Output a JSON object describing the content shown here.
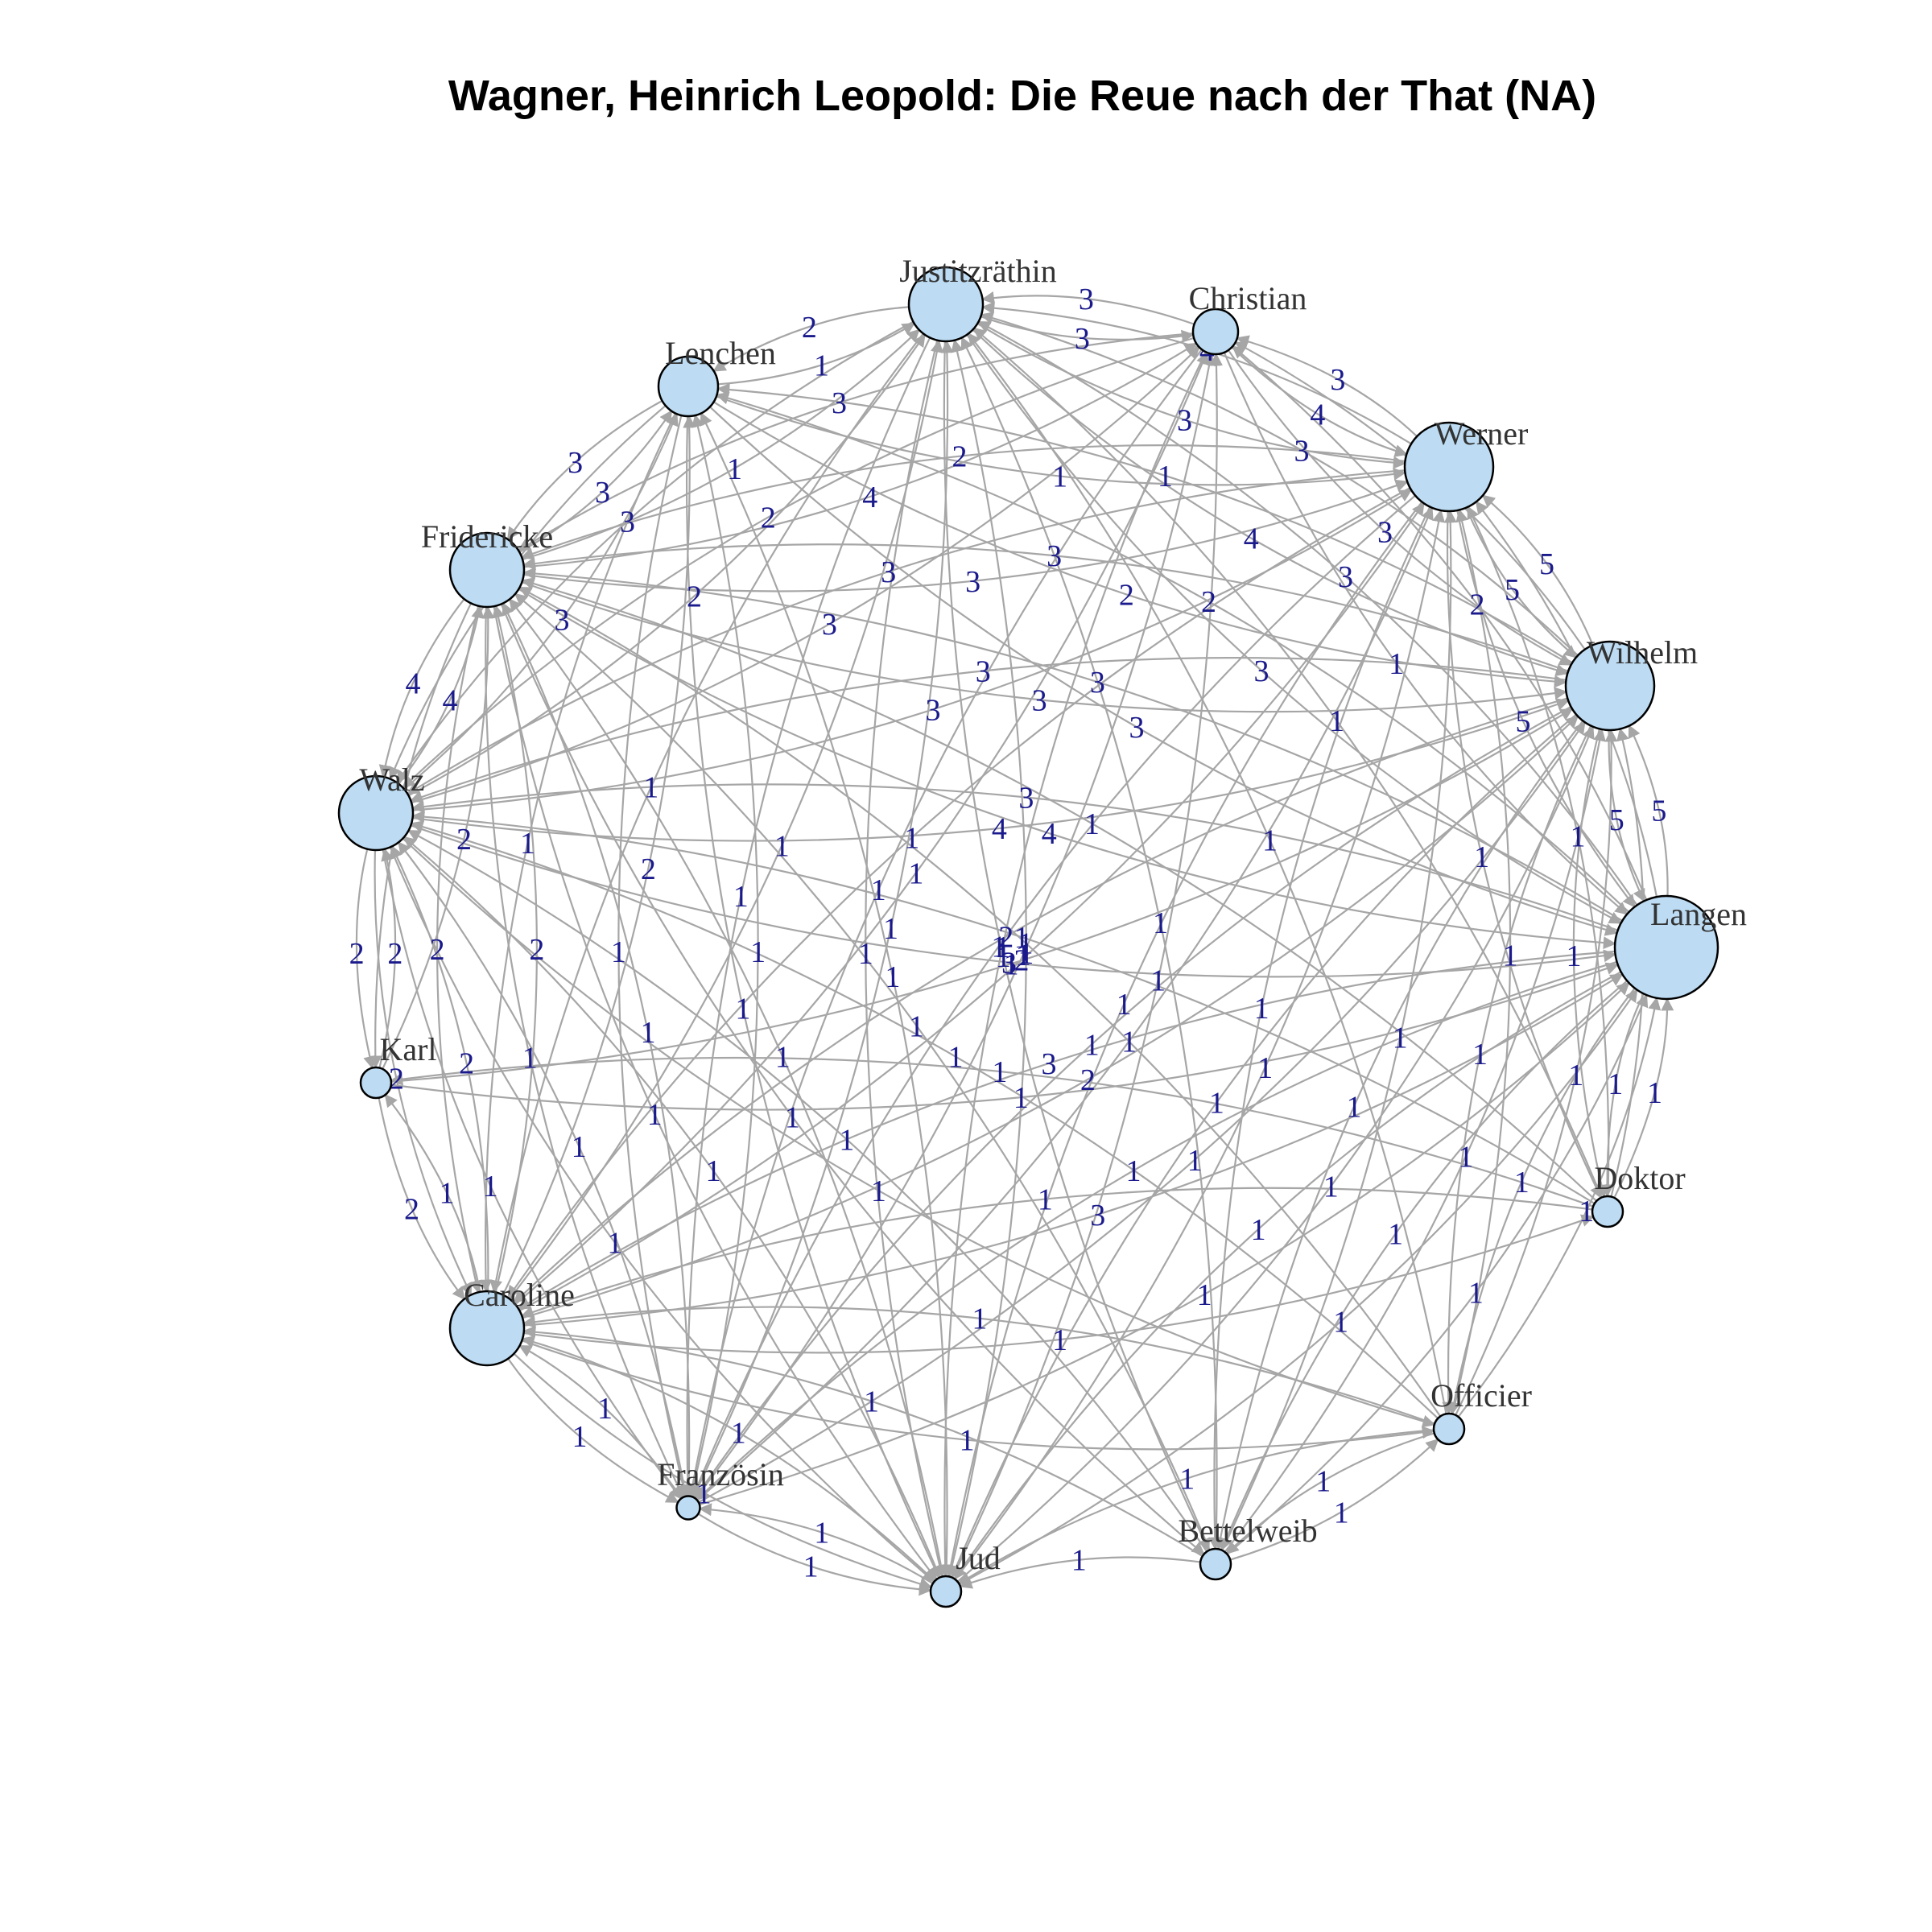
{
  "title": "Wagner, Heinrich Leopold: Die Reue nach der That (NA)",
  "colors": {
    "node_fill": "#bddcf3",
    "node_stroke": "#000000",
    "edge": "#a6a6a6",
    "edge_label": "#1a1a8c",
    "node_label": "#333333"
  },
  "nodes": [
    {
      "id": "Justitzräthin",
      "label": "Justitzräthin",
      "weight": 4
    },
    {
      "id": "Christian",
      "label": "Christian",
      "weight": 2
    },
    {
      "id": "Werner",
      "label": "Werner",
      "weight": 5
    },
    {
      "id": "Wilhelm",
      "label": "Wilhelm",
      "weight": 5
    },
    {
      "id": "Langen",
      "label": "Langen",
      "weight": 6
    },
    {
      "id": "Doktor",
      "label": "Doktor",
      "weight": 1
    },
    {
      "id": "Officier",
      "label": "Officier",
      "weight": 1
    },
    {
      "id": "Bettelweib",
      "label": "Bettelweib",
      "weight": 1
    },
    {
      "id": "Jud",
      "label": "Jud",
      "weight": 1
    },
    {
      "id": "Französin",
      "label": "Französin",
      "weight": 0.5
    },
    {
      "id": "Caroline",
      "label": "Caroline",
      "weight": 4
    },
    {
      "id": "Karl",
      "label": "Karl",
      "weight": 1
    },
    {
      "id": "Walz",
      "label": "Walz",
      "weight": 4
    },
    {
      "id": "Fridericke",
      "label": "Fridericke",
      "weight": 4
    },
    {
      "id": "Lenchen",
      "label": "Lenchen",
      "weight": 3
    }
  ],
  "edges": [
    [
      "Justitzräthin",
      "Christian",
      3
    ],
    [
      "Christian",
      "Justitzräthin",
      3
    ],
    [
      "Justitzräthin",
      "Lenchen",
      2
    ],
    [
      "Lenchen",
      "Justitzräthin",
      1
    ],
    [
      "Fridericke",
      "Justitzräthin",
      1
    ],
    [
      "Justitzräthin",
      "Werner",
      3
    ],
    [
      "Werner",
      "Justitzräthin",
      4
    ],
    [
      "Christian",
      "Werner",
      4
    ],
    [
      "Werner",
      "Christian",
      3
    ],
    [
      "Werner",
      "Wilhelm",
      5
    ],
    [
      "Wilhelm",
      "Werner",
      5
    ],
    [
      "Wilhelm",
      "Langen",
      5
    ],
    [
      "Langen",
      "Wilhelm",
      5
    ],
    [
      "Werner",
      "Langen",
      5
    ],
    [
      "Langen",
      "Werner",
      4
    ],
    [
      "Fridericke",
      "Lenchen",
      3
    ],
    [
      "Lenchen",
      "Fridericke",
      3
    ],
    [
      "Walz",
      "Fridericke",
      4
    ],
    [
      "Fridericke",
      "Walz",
      4
    ],
    [
      "Walz",
      "Karl",
      2
    ],
    [
      "Karl",
      "Walz",
      2
    ],
    [
      "Caroline",
      "Walz",
      2
    ],
    [
      "Walz",
      "Caroline",
      2
    ],
    [
      "Caroline",
      "Französin",
      1
    ],
    [
      "Französin",
      "Caroline",
      1
    ],
    [
      "Jud",
      "Französin",
      1
    ],
    [
      "Bettelweib",
      "Officier",
      1
    ],
    [
      "Officier",
      "Bettelweib",
      1
    ],
    [
      "Doktor",
      "Langen",
      1
    ],
    [
      "Langen",
      "Doktor",
      1
    ],
    [
      "Officier",
      "Langen",
      1
    ],
    [
      "Fridericke",
      "Werner",
      3
    ],
    [
      "Werner",
      "Fridericke",
      2
    ],
    [
      "Walz",
      "Werner",
      3
    ],
    [
      "Werner",
      "Walz",
      3
    ],
    [
      "Fridericke",
      "Wilhelm",
      3
    ],
    [
      "Wilhelm",
      "Fridericke",
      3
    ],
    [
      "Walz",
      "Wilhelm",
      4
    ],
    [
      "Wilhelm",
      "Walz",
      3
    ],
    [
      "Walz",
      "Langen",
      3
    ],
    [
      "Langen",
      "Walz",
      3
    ],
    [
      "Fridericke",
      "Langen",
      4
    ],
    [
      "Langen",
      "Fridericke",
      3
    ],
    [
      "Caroline",
      "Langen",
      3
    ],
    [
      "Langen",
      "Caroline",
      3
    ],
    [
      "Caroline",
      "Wilhelm",
      2
    ],
    [
      "Wilhelm",
      "Caroline",
      2
    ],
    [
      "Caroline",
      "Werner",
      2
    ],
    [
      "Werner",
      "Caroline",
      1
    ],
    [
      "Caroline",
      "Fridericke",
      2
    ],
    [
      "Fridericke",
      "Caroline",
      2
    ],
    [
      "Caroline",
      "Justitzräthin",
      1
    ],
    [
      "Justitzräthin",
      "Caroline",
      1
    ],
    [
      "Caroline",
      "Lenchen",
      2
    ],
    [
      "Lenchen",
      "Caroline",
      1
    ],
    [
      "Caroline",
      "Christian",
      1
    ],
    [
      "Walz",
      "Justitzräthin",
      2
    ],
    [
      "Justitzräthin",
      "Walz",
      3
    ],
    [
      "Walz",
      "Lenchen",
      3
    ],
    [
      "Lenchen",
      "Walz",
      2
    ],
    [
      "Walz",
      "Christian",
      3
    ],
    [
      "Christian",
      "Walz",
      2
    ],
    [
      "Fridericke",
      "Christian",
      4
    ],
    [
      "Christian",
      "Fridericke",
      3
    ],
    [
      "Justitzräthin",
      "Wilhelm",
      4
    ],
    [
      "Wilhelm",
      "Justitzräthin",
      3
    ],
    [
      "Justitzräthin",
      "Langen",
      3
    ],
    [
      "Langen",
      "Justitzräthin",
      3
    ],
    [
      "Christian",
      "Wilhelm",
      3
    ],
    [
      "Wilhelm",
      "Christian",
      4
    ],
    [
      "Christian",
      "Langen",
      1
    ],
    [
      "Langen",
      "Christian",
      2
    ],
    [
      "Lenchen",
      "Werner",
      1
    ],
    [
      "Lenchen",
      "Wilhelm",
      2
    ],
    [
      "Wilhelm",
      "Lenchen",
      1
    ],
    [
      "Lenchen",
      "Langen",
      3
    ],
    [
      "Langen",
      "Lenchen",
      2
    ],
    [
      "Karl",
      "Langen",
      1
    ],
    [
      "Karl",
      "Fridericke",
      2
    ],
    [
      "Fridericke",
      "Karl",
      1
    ],
    [
      "Karl",
      "Wilhelm",
      1
    ],
    [
      "Doktor",
      "Wilhelm",
      1
    ],
    [
      "Doktor",
      "Werner",
      1
    ],
    [
      "Doktor",
      "Caroline",
      1
    ],
    [
      "Doktor",
      "Walz",
      1
    ],
    [
      "Doktor",
      "Karl",
      1
    ],
    [
      "Doktor",
      "Justitzräthin",
      1
    ],
    [
      "Doktor",
      "Fridericke",
      1
    ],
    [
      "Officier",
      "Wilhelm",
      1
    ],
    [
      "Officier",
      "Werner",
      1
    ],
    [
      "Officier",
      "Caroline",
      1
    ],
    [
      "Officier",
      "Walz",
      1
    ],
    [
      "Officier",
      "Fridericke",
      1
    ],
    [
      "Officier",
      "Justitzräthin",
      1
    ],
    [
      "Officier",
      "Jud",
      1
    ],
    [
      "Bettelweib",
      "Langen",
      1
    ],
    [
      "Bettelweib",
      "Wilhelm",
      1
    ],
    [
      "Bettelweib",
      "Werner",
      1
    ],
    [
      "Bettelweib",
      "Caroline",
      1
    ],
    [
      "Bettelweib",
      "Walz",
      1
    ],
    [
      "Bettelweib",
      "Fridericke",
      1
    ],
    [
      "Bettelweib",
      "Justitzräthin",
      1
    ],
    [
      "Bettelweib",
      "Jud",
      1
    ],
    [
      "Jud",
      "Langen",
      1
    ],
    [
      "Jud",
      "Wilhelm",
      1
    ],
    [
      "Jud",
      "Werner",
      1
    ],
    [
      "Jud",
      "Caroline",
      1
    ],
    [
      "Jud",
      "Walz",
      1
    ],
    [
      "Jud",
      "Fridericke",
      1
    ],
    [
      "Jud",
      "Justitzräthin",
      1
    ],
    [
      "Jud",
      "Lenchen",
      1
    ],
    [
      "Jud",
      "Christian",
      1
    ],
    [
      "Französin",
      "Langen",
      1
    ],
    [
      "Französin",
      "Wilhelm",
      1
    ],
    [
      "Französin",
      "Werner",
      1
    ],
    [
      "Französin",
      "Walz",
      1
    ],
    [
      "Französin",
      "Fridericke",
      1
    ],
    [
      "Französin",
      "Justitzräthin",
      1
    ],
    [
      "Französin",
      "Lenchen",
      1
    ],
    [
      "Französin",
      "Christian",
      1
    ],
    [
      "Französin",
      "Jud",
      1
    ],
    [
      "Caroline",
      "Jud",
      1
    ],
    [
      "Caroline",
      "Karl",
      1
    ],
    [
      "Langen",
      "Jud",
      1
    ],
    [
      "Langen",
      "Französin",
      1
    ],
    [
      "Langen",
      "Bettelweib",
      1
    ],
    [
      "Langen",
      "Officier",
      1
    ],
    [
      "Wilhelm",
      "Doktor",
      1
    ],
    [
      "Wilhelm",
      "Officier",
      1
    ],
    [
      "Wilhelm",
      "Bettelweib",
      1
    ],
    [
      "Wilhelm",
      "Jud",
      1
    ],
    [
      "Wilhelm",
      "Französin",
      1
    ],
    [
      "Werner",
      "Doktor",
      1
    ],
    [
      "Werner",
      "Jud",
      1
    ],
    [
      "Werner",
      "Französin",
      1
    ],
    [
      "Werner",
      "Bettelweib",
      1
    ],
    [
      "Walz",
      "Jud",
      1
    ],
    [
      "Walz",
      "Französin",
      1
    ],
    [
      "Walz",
      "Officier",
      1
    ],
    [
      "Fridericke",
      "Jud",
      1
    ],
    [
      "Fridericke",
      "Bettelweib",
      1
    ],
    [
      "Fridericke",
      "Französin",
      1
    ],
    [
      "Justitzräthin",
      "Jud",
      1
    ],
    [
      "Justitzräthin",
      "Bettelweib",
      1
    ],
    [
      "Justitzräthin",
      "Französin",
      1
    ],
    [
      "Lenchen",
      "Jud",
      1
    ],
    [
      "Lenchen",
      "Französin",
      1
    ],
    [
      "Christian",
      "Jud",
      1
    ],
    [
      "Christian",
      "Französin",
      1
    ],
    [
      "Caroline",
      "Officier",
      1
    ],
    [
      "Caroline",
      "Doktor",
      1
    ],
    [
      "Karl",
      "Caroline",
      2
    ]
  ]
}
